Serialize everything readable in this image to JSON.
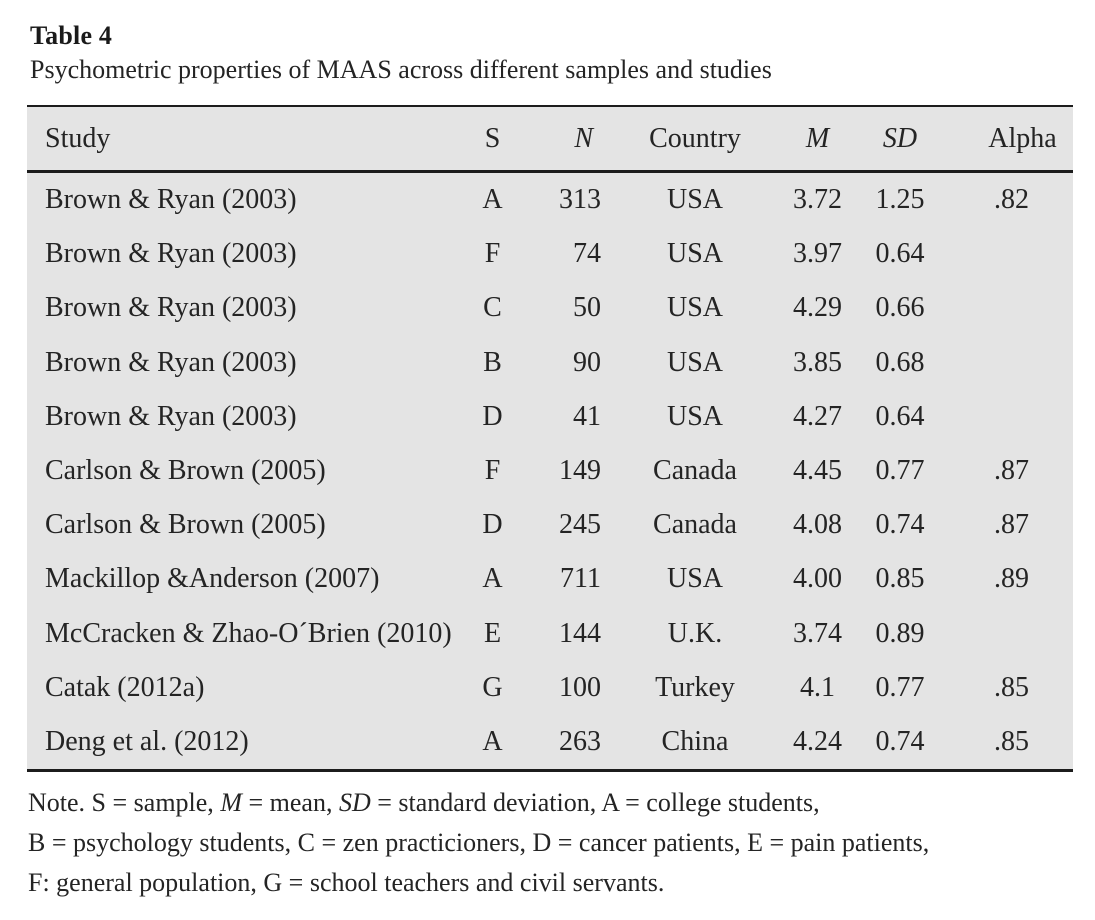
{
  "caption": {
    "label": "Table 4",
    "title": "Psychometric properties of MAAS across different samples and studies"
  },
  "table": {
    "header": {
      "study": "Study",
      "s": "S",
      "n": "N",
      "country": "Country",
      "m": "M",
      "sd": "SD",
      "alpha": "Alpha"
    },
    "rows": [
      {
        "study": "Brown & Ryan (2003)",
        "s": "A",
        "n": "313",
        "country": "USA",
        "m": "3.72",
        "sd": "1.25",
        "alpha": ".82"
      },
      {
        "study": "Brown & Ryan (2003)",
        "s": "F",
        "n": "74",
        "country": "USA",
        "m": "3.97",
        "sd": "0.64",
        "alpha": ""
      },
      {
        "study": "Brown & Ryan (2003)",
        "s": "C",
        "n": "50",
        "country": "USA",
        "m": "4.29",
        "sd": "0.66",
        "alpha": ""
      },
      {
        "study": "Brown & Ryan (2003)",
        "s": "B",
        "n": "90",
        "country": "USA",
        "m": "3.85",
        "sd": "0.68",
        "alpha": ""
      },
      {
        "study": "Brown & Ryan (2003)",
        "s": "D",
        "n": "41",
        "country": "USA",
        "m": "4.27",
        "sd": "0.64",
        "alpha": ""
      },
      {
        "study": "Carlson & Brown (2005)",
        "s": "F",
        "n": "149",
        "country": "Canada",
        "m": "4.45",
        "sd": "0.77",
        "alpha": ".87"
      },
      {
        "study": "Carlson & Brown (2005)",
        "s": "D",
        "n": "245",
        "country": "Canada",
        "m": "4.08",
        "sd": "0.74",
        "alpha": ".87"
      },
      {
        "study": "Mackillop &Anderson (2007)",
        "s": "A",
        "n": "711",
        "country": "USA",
        "m": "4.00",
        "sd": "0.85",
        "alpha": ".89"
      },
      {
        "study": "McCracken & Zhao-O´Brien (2010)",
        "s": "E",
        "n": "144",
        "country": "U.K.",
        "m": "3.74",
        "sd": "0.89",
        "alpha": ""
      },
      {
        "study": "Catak (2012a)",
        "s": "G",
        "n": "100",
        "country": "Turkey",
        "m": "4.1",
        "sd": "0.77",
        "alpha": ".85"
      },
      {
        "study": "Deng et al. (2012)",
        "s": "A",
        "n": "263",
        "country": "China",
        "m": "4.24",
        "sd": "0.74",
        "alpha": ".85"
      }
    ]
  },
  "note": {
    "l1a": "Note. S = sample, ",
    "l1b": "M",
    "l1c": " = mean, ",
    "l1d": "SD",
    "l1e": " = standard deviation, A = college students,",
    "l2": "B = psychology students, C = zen practicioners, D = cancer patients, E = pain patients,",
    "l3": "F: general population, G = school teachers and civil servants."
  }
}
